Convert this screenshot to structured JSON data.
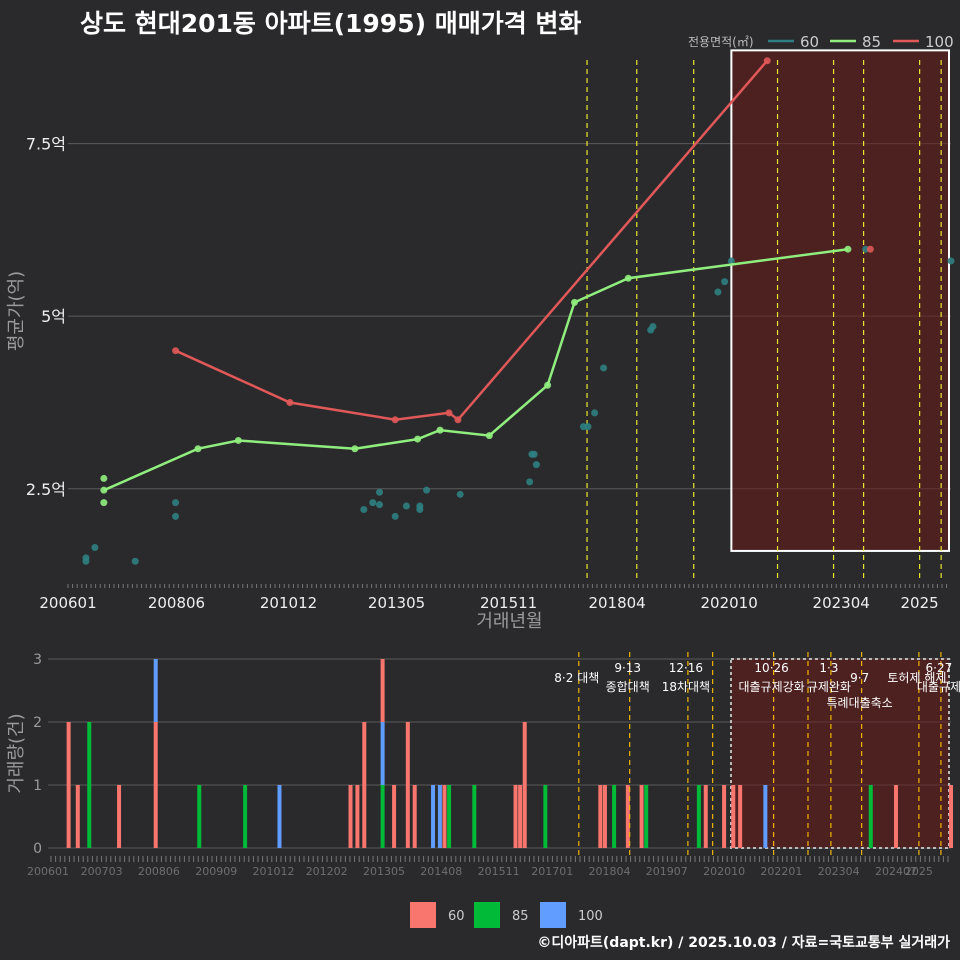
{
  "title": "상도 현대201동 아파트(1995) 매매가격 변화",
  "credit": "©디아파트(dapt.kr) / 2025.10.03 / 자료=국토교통부 실거래가",
  "colors": {
    "background": "#2a2a2c",
    "grid": "#5a5a5a",
    "s60_line": "#2e7f82",
    "s85_line": "#90ee7e",
    "s100_line": "#e05858",
    "b60": "#f8766d",
    "b85": "#00ba38",
    "b100": "#619cff",
    "policy_line": "#e6e62e",
    "policy_line_bottom": "#f0b400",
    "highlight_fill": "#6b1a1a"
  },
  "chart_data": [
    {
      "type": "line",
      "title": "상도 현대201동 아파트(1995) 매매가격 변화",
      "xlabel": "거래년월",
      "ylabel": "평균가(억)",
      "x_ticks": [
        "200601",
        "200806",
        "201012",
        "201305",
        "201511",
        "201804",
        "202010",
        "202304",
        "2025"
      ],
      "x_tick_values": [
        2006.0,
        2008.42,
        2010.92,
        2013.33,
        2015.83,
        2018.25,
        2020.75,
        2023.25,
        2025.0
      ],
      "xlim": [
        2006.0,
        2025.7
      ],
      "y_ticks": [
        "2.5억",
        "5억",
        "7.5억"
      ],
      "y_tick_values": [
        2.5,
        5.0,
        7.5
      ],
      "ylim": [
        1.15,
        9.0
      ],
      "legend_title": "전용면적(㎡)",
      "legend_labels": [
        "60",
        "85",
        "100"
      ],
      "series": [
        {
          "name": "60",
          "line": [],
          "points": [
            [
              2006.4,
              1.5
            ],
            [
              2006.4,
              1.45
            ],
            [
              2006.6,
              1.65
            ],
            [
              2007.5,
              1.45
            ],
            [
              2008.4,
              2.3
            ],
            [
              2008.4,
              2.1
            ],
            [
              2012.6,
              2.2
            ],
            [
              2012.8,
              2.3
            ],
            [
              2012.95,
              2.45
            ],
            [
              2012.95,
              2.27
            ],
            [
              2013.3,
              2.1
            ],
            [
              2013.55,
              2.25
            ],
            [
              2013.85,
              2.2
            ],
            [
              2013.85,
              2.25
            ],
            [
              2014.0,
              2.48
            ],
            [
              2014.75,
              2.42
            ],
            [
              2016.3,
              2.6
            ],
            [
              2016.35,
              3.0
            ],
            [
              2016.4,
              3.0
            ],
            [
              2016.45,
              2.85
            ],
            [
              2017.5,
              3.4
            ],
            [
              2017.6,
              3.4
            ],
            [
              2017.95,
              4.25
            ],
            [
              2017.75,
              3.6
            ],
            [
              2019.0,
              4.8
            ],
            [
              2019.05,
              4.85
            ],
            [
              2020.5,
              5.35
            ],
            [
              2020.65,
              5.5
            ],
            [
              2020.8,
              5.8
            ],
            [
              2023.8,
              5.97
            ],
            [
              2025.7,
              5.8
            ]
          ]
        },
        {
          "name": "85",
          "line": [
            [
              2006.8,
              2.48
            ],
            [
              2008.9,
              3.08
            ],
            [
              2009.8,
              3.2
            ],
            [
              2012.4,
              3.08
            ],
            [
              2013.8,
              3.22
            ],
            [
              2014.3,
              3.35
            ],
            [
              2015.4,
              3.27
            ],
            [
              2016.7,
              4.0
            ],
            [
              2017.3,
              5.2
            ],
            [
              2018.5,
              5.55
            ],
            [
              2023.4,
              5.97
            ]
          ],
          "points": [
            [
              2006.8,
              2.48
            ],
            [
              2006.8,
              2.65
            ],
            [
              2006.8,
              2.3
            ],
            [
              2008.9,
              3.08
            ],
            [
              2009.8,
              3.2
            ],
            [
              2012.4,
              3.08
            ],
            [
              2013.8,
              3.22
            ],
            [
              2014.3,
              3.35
            ],
            [
              2015.4,
              3.27
            ],
            [
              2016.7,
              4.0
            ],
            [
              2017.3,
              5.2
            ],
            [
              2018.5,
              5.55
            ],
            [
              2023.4,
              5.97
            ]
          ]
        },
        {
          "name": "100",
          "line": [
            [
              2008.4,
              4.5
            ],
            [
              2010.95,
              3.75
            ],
            [
              2013.3,
              3.5
            ],
            [
              2014.5,
              3.6
            ],
            [
              2014.7,
              3.5
            ],
            [
              2021.6,
              8.7
            ]
          ],
          "points": [
            [
              2008.4,
              4.5
            ],
            [
              2010.95,
              3.75
            ],
            [
              2013.3,
              3.5
            ],
            [
              2014.5,
              3.6
            ],
            [
              2014.7,
              3.5
            ],
            [
              2021.6,
              8.7
            ],
            [
              2023.9,
              5.97
            ]
          ]
        }
      ],
      "policy_lines": [
        2017.58,
        2018.69,
        2019.96,
        2021.83,
        2023.08,
        2023.75,
        2025.0,
        2025.48
      ],
      "highlight_range": [
        2020.8,
        2025.7
      ],
      "highlight_y": [
        1.6,
        8.85
      ]
    },
    {
      "type": "bar",
      "ylabel": "거래량(건)",
      "y_ticks": [
        "0",
        "1",
        "2",
        "3"
      ],
      "y_tick_values": [
        0,
        1,
        2,
        3
      ],
      "x_ticks": [
        "200601",
        "200703",
        "200806",
        "200909",
        "201012",
        "201202",
        "201305",
        "201408",
        "201511",
        "201701",
        "201804",
        "201907",
        "202010",
        "202201",
        "202304",
        "202407",
        "2025"
      ],
      "x_tick_values": [
        2006.0,
        2007.17,
        2008.42,
        2009.67,
        2010.92,
        2012.08,
        2013.33,
        2014.58,
        2015.83,
        2017.0,
        2018.25,
        2019.5,
        2020.75,
        2022.0,
        2023.25,
        2024.5,
        2025.0
      ],
      "xlim": [
        2006.0,
        2025.7
      ],
      "legend": [
        "60",
        "85",
        "100"
      ],
      "bars": [
        {
          "x": 2006.45,
          "series": "60",
          "value": 2
        },
        {
          "x": 2006.65,
          "series": "60",
          "value": 1
        },
        {
          "x": 2006.9,
          "series": "85",
          "value": 2
        },
        {
          "x": 2007.55,
          "series": "60",
          "value": 1
        },
        {
          "x": 2008.35,
          "series": "60",
          "value": 2
        },
        {
          "x": 2008.35,
          "series": "100",
          "value": 1
        },
        {
          "x": 2009.3,
          "series": "85",
          "value": 1
        },
        {
          "x": 2010.3,
          "series": "85",
          "value": 1
        },
        {
          "x": 2011.05,
          "series": "100",
          "value": 1
        },
        {
          "x": 2012.6,
          "series": "60",
          "value": 1
        },
        {
          "x": 2012.75,
          "series": "60",
          "value": 1
        },
        {
          "x": 2012.9,
          "series": "60",
          "value": 2
        },
        {
          "x": 2013.3,
          "series": "85",
          "value": 1
        },
        {
          "x": 2013.3,
          "series": "100",
          "value": 1
        },
        {
          "x": 2013.3,
          "series": "60",
          "value": 1
        },
        {
          "x": 2013.55,
          "series": "60",
          "value": 1
        },
        {
          "x": 2013.85,
          "series": "60",
          "value": 2
        },
        {
          "x": 2014.0,
          "series": "60",
          "value": 1
        },
        {
          "x": 2014.4,
          "series": "100",
          "value": 1
        },
        {
          "x": 2014.55,
          "series": "100",
          "value": 1
        },
        {
          "x": 2014.65,
          "series": "60",
          "value": 1
        },
        {
          "x": 2014.75,
          "series": "85",
          "value": 1
        },
        {
          "x": 2015.3,
          "series": "85",
          "value": 1
        },
        {
          "x": 2016.2,
          "series": "60",
          "value": 1
        },
        {
          "x": 2016.3,
          "series": "60",
          "value": 1
        },
        {
          "x": 2016.4,
          "series": "60",
          "value": 2
        },
        {
          "x": 2016.85,
          "series": "85",
          "value": 1
        },
        {
          "x": 2018.05,
          "series": "60",
          "value": 1
        },
        {
          "x": 2018.15,
          "series": "60",
          "value": 1
        },
        {
          "x": 2018.35,
          "series": "85",
          "value": 1
        },
        {
          "x": 2018.65,
          "series": "60",
          "value": 1
        },
        {
          "x": 2018.95,
          "series": "60",
          "value": 1
        },
        {
          "x": 2019.05,
          "series": "85",
          "value": 1
        },
        {
          "x": 2020.2,
          "series": "85",
          "value": 1
        },
        {
          "x": 2020.35,
          "series": "60",
          "value": 1
        },
        {
          "x": 2020.75,
          "series": "60",
          "value": 1
        },
        {
          "x": 2020.95,
          "series": "60",
          "value": 1
        },
        {
          "x": 2021.1,
          "series": "60",
          "value": 1
        },
        {
          "x": 2021.65,
          "series": "100",
          "value": 1
        },
        {
          "x": 2023.95,
          "series": "85",
          "value": 1
        },
        {
          "x": 2024.5,
          "series": "60",
          "value": 1
        },
        {
          "x": 2025.7,
          "series": "60",
          "value": 1
        }
      ],
      "policy_lines": [
        2017.58,
        2018.69,
        2019.96,
        2020.5,
        2021.83,
        2022.58,
        2023.08,
        2023.75,
        2025.0,
        2025.48
      ],
      "highlight_range": [
        2020.9,
        2025.7
      ],
      "annotations": [
        {
          "x": 2017.58,
          "line1": "",
          "line2": "8·2 대책"
        },
        {
          "x": 2018.69,
          "line1": "9·13",
          "line2": "종합대책"
        },
        {
          "x": 2019.96,
          "line1": "12·16",
          "line2": "18차대책"
        },
        {
          "x": 2021.83,
          "line1": "10·26",
          "line2": "대출규제강화"
        },
        {
          "x": 2023.08,
          "line1": "1·3",
          "line2": "규제완화"
        },
        {
          "x": 2023.75,
          "line1": "",
          "line2": "9·7"
        },
        {
          "x": 2023.75,
          "line1": "",
          "line2": "특례대출축소"
        },
        {
          "x": 2025.0,
          "line1": "",
          "line2": "토허제 해제"
        },
        {
          "x": 2025.48,
          "line1": "6·27",
          "line2": "대출규제"
        }
      ]
    }
  ]
}
